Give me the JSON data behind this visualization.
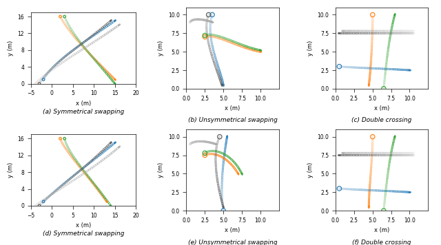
{
  "subplots": [
    {
      "label": "(a) Symmetrical swapping",
      "xlim": [
        -5,
        20
      ],
      "ylim": [
        0,
        17
      ],
      "xticks": [
        -5,
        0,
        5,
        10,
        15,
        20
      ],
      "yticks": [
        0,
        4,
        8,
        12,
        16
      ]
    },
    {
      "label": "(b) Unsymmetrical swapping",
      "xlim": [
        0.0,
        12.5
      ],
      "ylim": [
        0.0,
        11.0
      ],
      "xticks": [
        0.0,
        2.5,
        5.0,
        7.5,
        10.0
      ],
      "yticks": [
        0.0,
        2.5,
        5.0,
        7.5,
        10.0
      ]
    },
    {
      "label": "(c) Double crossing",
      "xlim": [
        0.0,
        12.5
      ],
      "ylim": [
        0.0,
        11.0
      ],
      "xticks": [
        0.0,
        2.5,
        5.0,
        7.5,
        10.0
      ],
      "yticks": [
        0.0,
        2.5,
        5.0,
        7.5,
        10.0
      ]
    },
    {
      "label": "(d) Symmetrical swapping",
      "xlim": [
        -5,
        20
      ],
      "ylim": [
        0,
        17
      ],
      "xticks": [
        -5,
        0,
        5,
        10,
        15,
        20
      ],
      "yticks": [
        0,
        4,
        8,
        12,
        16
      ]
    },
    {
      "label": "(e) Unsymmetrical swapping",
      "xlim": [
        0.0,
        12.5
      ],
      "ylim": [
        0.0,
        11.0
      ],
      "xticks": [
        0.0,
        2.5,
        5.0,
        7.5,
        10.0
      ],
      "yticks": [
        0.0,
        2.5,
        5.0,
        7.5,
        10.0
      ]
    },
    {
      "label": "(f) Double crossing",
      "xlim": [
        0.0,
        12.5
      ],
      "ylim": [
        0.0,
        11.0
      ],
      "xticks": [
        0.0,
        2.5,
        5.0,
        7.5,
        10.0
      ],
      "yticks": [
        0.0,
        2.5,
        5.0,
        7.5,
        10.0
      ]
    }
  ],
  "colors": {
    "blue": "#1f77b4",
    "orange": "#ff7f0e",
    "green": "#2ca02c",
    "gray": "#555555",
    "lightgray": "#aaaaaa"
  },
  "xlabel": "x (m)",
  "ylabel": "y (m)"
}
